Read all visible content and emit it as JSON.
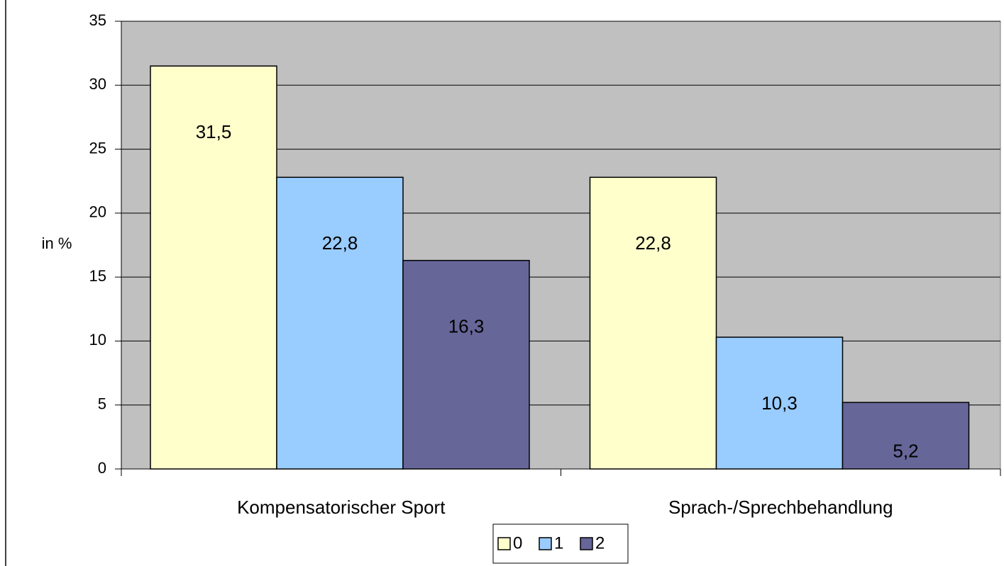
{
  "chart_data": {
    "type": "bar",
    "ylabel": "in %",
    "categories": [
      "Kompensatorischer Sport",
      "Sprach-/Sprechbehandlung"
    ],
    "series": [
      {
        "name": "0",
        "color": "#ffffcc",
        "values": [
          31.5,
          22.8
        ],
        "value_labels": [
          "31,5",
          "22,8"
        ]
      },
      {
        "name": "1",
        "color": "#99ccff",
        "values": [
          22.8,
          10.3
        ],
        "value_labels": [
          "22,8",
          "10,3"
        ]
      },
      {
        "name": "2",
        "color": "#666699",
        "values": [
          16.3,
          5.2
        ],
        "value_labels": [
          "16,3",
          "5,2"
        ]
      }
    ],
    "ylim": [
      0,
      35
    ],
    "yticks": [
      0,
      5,
      10,
      15,
      20,
      25,
      30,
      35
    ],
    "grid": true,
    "plot_background": "#c0c0c0",
    "legend": "bottom"
  }
}
